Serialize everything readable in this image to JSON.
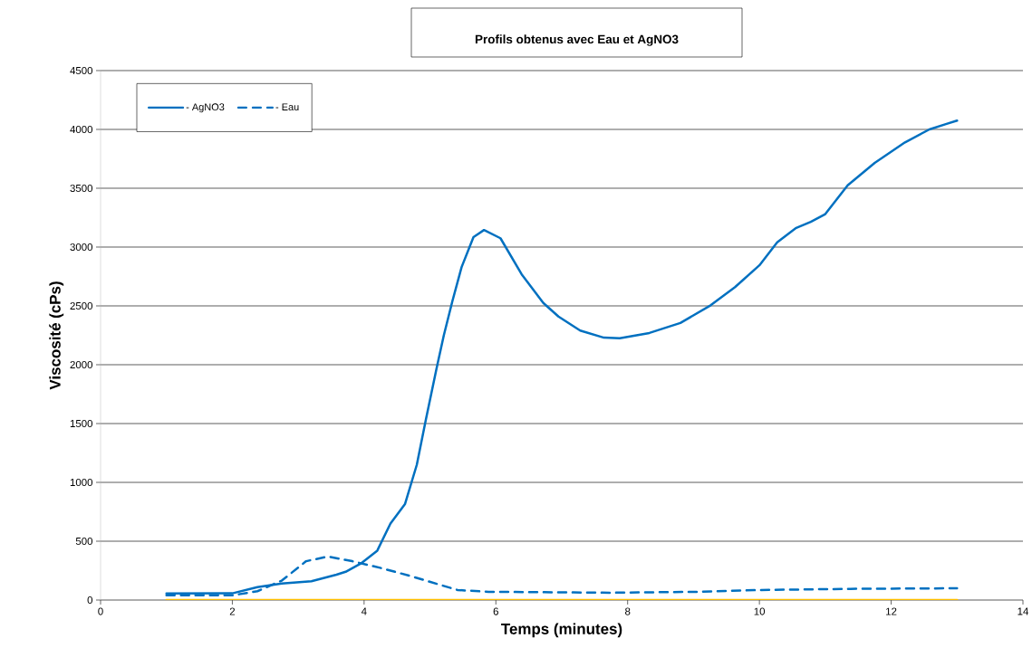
{
  "chart_data": {
    "type": "line",
    "title": "Profils obtenus avec Eau et AgNO3",
    "xlabel": "Temps (minutes)",
    "ylabel": "Viscosité (cPs)",
    "xlim": [
      0,
      14
    ],
    "xticks": [
      0,
      2,
      4,
      6,
      8,
      10,
      12,
      14
    ],
    "ylim": [
      0,
      4500
    ],
    "yticks": [
      0,
      500,
      1000,
      1500,
      2000,
      2500,
      3000,
      3500,
      4000,
      4500
    ],
    "grid": "y",
    "legend": "top left",
    "marker": "none",
    "series": [
      {
        "name": "- AgNO3",
        "color": "#0070c0",
        "line_style": "solid",
        "x": [
          1,
          2,
          2.38,
          2.75,
          3.2,
          3.58,
          3.72,
          3.95,
          4.2,
          4.4,
          4.62,
          4.8,
          4.94,
          5.1,
          5.21,
          5.34,
          5.48,
          5.66,
          5.82,
          6.07,
          6.39,
          6.72,
          6.95,
          7.28,
          7.64,
          7.88,
          8.33,
          8.8,
          9.26,
          9.63,
          10.0,
          10.27,
          10.55,
          10.78,
          11.0,
          11.34,
          11.75,
          12.21,
          12.58,
          12.83,
          13
        ],
        "values": [
          55,
          57,
          110,
          140,
          160,
          215,
          240,
          310,
          420,
          650,
          815,
          1150,
          1540,
          1970,
          2250,
          2540,
          2830,
          3085,
          3145,
          3075,
          2770,
          2525,
          2410,
          2290,
          2230,
          2225,
          2270,
          2355,
          2505,
          2660,
          2845,
          3040,
          3160,
          3215,
          3280,
          3525,
          3715,
          3890,
          4000,
          4045,
          4075
        ]
      },
      {
        "name": "- Eau",
        "color": "#0070c0",
        "line_style": "dashed",
        "x": [
          1,
          2,
          2.38,
          2.75,
          3.12,
          3.45,
          3.82,
          4.27,
          4.73,
          5.42,
          5.89,
          7.73,
          9.08,
          10.0,
          11.38,
          13
        ],
        "values": [
          40,
          40,
          75,
          165,
          330,
          370,
          330,
          270,
          200,
          85,
          70,
          62,
          70,
          85,
          95,
          100
        ]
      },
      {
        "color": "#ffc000",
        "line_style": "solid",
        "x": [
          1,
          13
        ],
        "values": [
          0,
          0
        ]
      }
    ]
  }
}
